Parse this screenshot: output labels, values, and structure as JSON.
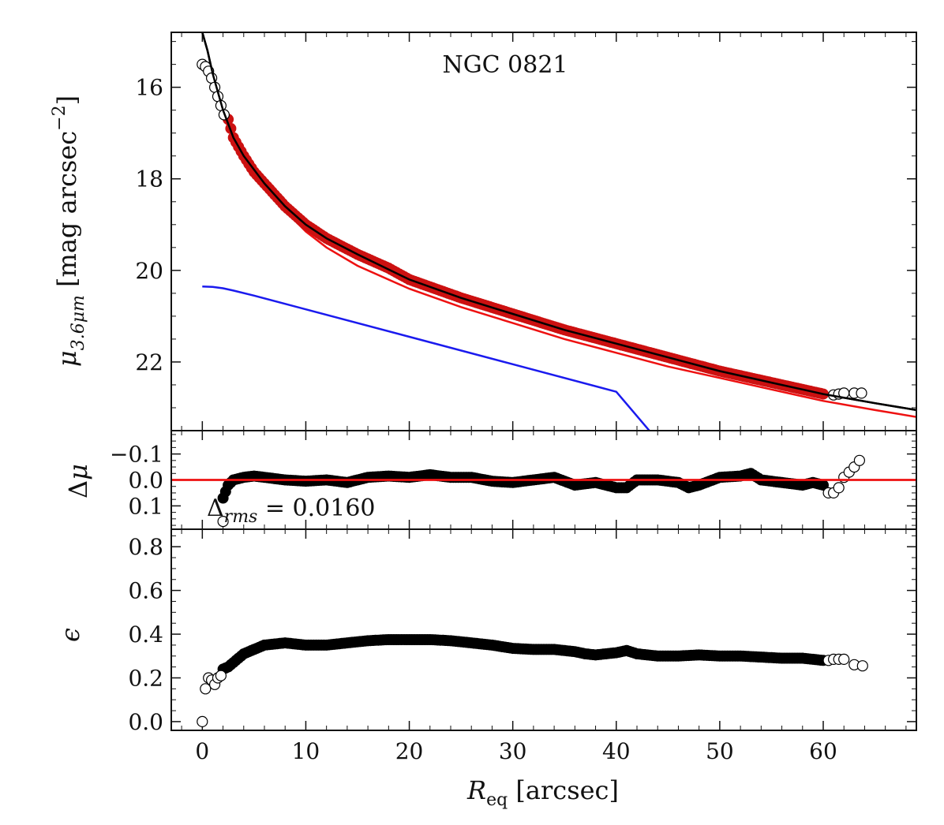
{
  "chart_data": [
    {
      "panel": "surface_brightness",
      "type": "scatter",
      "title": "NGC 0821",
      "xlabel": "R_eq [arcsec]",
      "ylabel": "μ_3.6μm [mag arcsec^-2]",
      "xlim": [
        -3,
        69
      ],
      "ylim": [
        23.5,
        14.8
      ],
      "yticks": [
        16,
        18,
        20,
        22
      ],
      "ytick_labels": [
        "16",
        "18",
        "20",
        "22"
      ],
      "series": [
        {
          "name": "total model",
          "kind": "line",
          "color": "#000000",
          "x": [
            0,
            0.5,
            1,
            1.5,
            2,
            3,
            4,
            6,
            8,
            10,
            12,
            15,
            20,
            25,
            30,
            35,
            40,
            45,
            50,
            55,
            60,
            65,
            69
          ],
          "y": [
            14.8,
            15.2,
            15.7,
            16.1,
            16.5,
            17.1,
            17.5,
            18.1,
            18.6,
            19.0,
            19.3,
            19.65,
            20.2,
            20.6,
            20.95,
            21.3,
            21.6,
            21.9,
            22.2,
            22.45,
            22.7,
            22.9,
            23.05
          ]
        },
        {
          "name": "bulge component",
          "kind": "line",
          "color": "#ee1111",
          "x": [
            2,
            3,
            4,
            6,
            8,
            10,
            12,
            15,
            20,
            25,
            30,
            35,
            40,
            45,
            50,
            55,
            60,
            65,
            69
          ],
          "y": [
            16.6,
            17.15,
            17.55,
            18.2,
            18.7,
            19.15,
            19.5,
            19.9,
            20.4,
            20.8,
            21.15,
            21.5,
            21.8,
            22.1,
            22.35,
            22.6,
            22.85,
            23.05,
            23.2
          ]
        },
        {
          "name": "disk component",
          "kind": "line",
          "color": "#1a1aee",
          "x": [
            0,
            1,
            2,
            3,
            5,
            10,
            20,
            30,
            40,
            43.2
          ],
          "y": [
            20.35,
            20.36,
            20.39,
            20.44,
            20.55,
            20.85,
            21.45,
            22.05,
            22.65,
            23.5
          ]
        },
        {
          "name": "fitted data",
          "kind": "filled-markers",
          "color": "#cc1111",
          "x": [
            2.5,
            3,
            4,
            5,
            6,
            8,
            10,
            12,
            15,
            18,
            20,
            25,
            30,
            35,
            40,
            45,
            50,
            55,
            60
          ],
          "y": [
            16.7,
            17.1,
            17.5,
            17.85,
            18.1,
            18.6,
            19.0,
            19.3,
            19.65,
            19.95,
            20.2,
            20.6,
            20.95,
            21.3,
            21.6,
            21.9,
            22.2,
            22.45,
            22.7
          ]
        },
        {
          "name": "excluded data",
          "kind": "open-markers",
          "color": "#000000",
          "x": [
            0,
            0.3,
            0.6,
            0.9,
            1.2,
            1.5,
            1.8,
            2.1,
            61,
            61.5,
            62,
            63,
            63.7
          ],
          "y": [
            15.5,
            15.55,
            15.65,
            15.8,
            16.0,
            16.2,
            16.4,
            16.6,
            22.72,
            22.7,
            22.68,
            22.68,
            22.68
          ]
        }
      ]
    },
    {
      "panel": "residuals",
      "type": "scatter",
      "ylabel": "Δμ",
      "xlim": [
        -3,
        69
      ],
      "ylim": [
        0.19,
        -0.19
      ],
      "yticks": [
        -0.1,
        0.0,
        0.1
      ],
      "ytick_labels": [
        "−0.1",
        "0.0",
        "0.1"
      ],
      "annotation": "Δrms = 0.0160",
      "series": [
        {
          "name": "residuals (fitted)",
          "kind": "filled-markers",
          "color": "#000000",
          "x": [
            2,
            2.5,
            3,
            4,
            5,
            6,
            8,
            10,
            12,
            14,
            16,
            18,
            20,
            22,
            24,
            26,
            28,
            30,
            32,
            34,
            36,
            38,
            40,
            41,
            42,
            44,
            46,
            47,
            48,
            50,
            52,
            53,
            54,
            56,
            58,
            59,
            60
          ],
          "y": [
            0.07,
            0.02,
            0.0,
            -0.01,
            -0.015,
            -0.01,
            0.0,
            0.005,
            0.0,
            0.01,
            -0.01,
            -0.015,
            -0.01,
            -0.02,
            -0.01,
            -0.01,
            0.005,
            0.01,
            0.0,
            -0.01,
            0.02,
            0.01,
            0.03,
            0.03,
            0.0,
            0.0,
            0.01,
            0.03,
            0.02,
            -0.01,
            -0.015,
            -0.025,
            0.0,
            0.01,
            0.02,
            0.01,
            0.02
          ]
        },
        {
          "name": "residuals (excluded)",
          "kind": "open-markers",
          "color": "#000000",
          "x": [
            2,
            60.5,
            61,
            61.5,
            62,
            62.5,
            63,
            63.5
          ],
          "y": [
            0.16,
            0.05,
            0.05,
            0.03,
            -0.01,
            -0.03,
            -0.05,
            -0.075
          ]
        },
        {
          "name": "zero line",
          "kind": "line",
          "color": "#ee1111",
          "x": [
            -3,
            69
          ],
          "y": [
            0,
            0
          ]
        }
      ]
    },
    {
      "panel": "ellipticity",
      "type": "scatter",
      "xlabel": "R_eq [arcsec]",
      "ylabel": "ϵ",
      "xlim": [
        -3,
        69
      ],
      "ylim": [
        -0.04,
        0.88
      ],
      "yticks": [
        0.0,
        0.2,
        0.4,
        0.6,
        0.8
      ],
      "ytick_labels": [
        "0.0",
        "0.2",
        "0.4",
        "0.6",
        "0.8"
      ],
      "xticks": [
        0,
        10,
        20,
        30,
        40,
        50,
        60
      ],
      "xtick_labels": [
        "0",
        "10",
        "20",
        "30",
        "40",
        "50",
        "60"
      ],
      "series": [
        {
          "name": "ellipticity (fitted)",
          "kind": "filled-markers",
          "color": "#000000",
          "x": [
            2,
            2.5,
            3,
            4,
            5,
            6,
            7,
            8,
            9,
            10,
            12,
            14,
            16,
            18,
            20,
            22,
            24,
            26,
            28,
            30,
            32,
            34,
            36,
            37,
            38,
            40,
            41,
            42,
            44,
            46,
            48,
            50,
            52,
            54,
            56,
            58,
            60
          ],
          "y": [
            0.24,
            0.25,
            0.27,
            0.31,
            0.33,
            0.35,
            0.355,
            0.36,
            0.355,
            0.35,
            0.35,
            0.36,
            0.37,
            0.375,
            0.375,
            0.375,
            0.37,
            0.36,
            0.35,
            0.335,
            0.33,
            0.33,
            0.32,
            0.31,
            0.305,
            0.315,
            0.325,
            0.31,
            0.3,
            0.3,
            0.305,
            0.3,
            0.3,
            0.295,
            0.29,
            0.29,
            0.28
          ]
        },
        {
          "name": "ellipticity (excluded)",
          "kind": "open-markers",
          "color": "#000000",
          "x": [
            0,
            0.3,
            0.6,
            0.9,
            1.2,
            1.5,
            1.8,
            60.5,
            61,
            61.5,
            62,
            63,
            63.8
          ],
          "y": [
            0.0,
            0.15,
            0.2,
            0.19,
            0.17,
            0.2,
            0.21,
            0.28,
            0.285,
            0.285,
            0.285,
            0.26,
            0.255
          ]
        }
      ]
    }
  ]
}
